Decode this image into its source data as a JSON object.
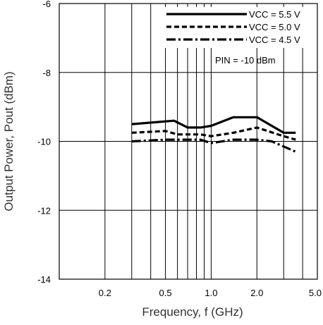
{
  "chart_data": {
    "type": "line",
    "xlabel": "Frequency, f (GHz)",
    "ylabel": "Output Power, Pout (dBm)",
    "x_scale": "log",
    "xlim": [
      0.1,
      5.0
    ],
    "ylim": [
      -14,
      -6
    ],
    "x_ticks": [
      {
        "value": 0.2,
        "label": "0.2"
      },
      {
        "value": 0.5,
        "label": "0.5"
      },
      {
        "value": 1.0,
        "label": "1.0"
      },
      {
        "value": 2.0,
        "label": "2.0"
      },
      {
        "value": 5.0,
        "label": "5.0"
      }
    ],
    "y_ticks": [
      {
        "value": -6,
        "label": "-6"
      },
      {
        "value": -8,
        "label": "-8"
      },
      {
        "value": -10,
        "label": "-10"
      },
      {
        "value": -12,
        "label": "-12"
      },
      {
        "value": -14,
        "label": "-14"
      }
    ],
    "x_gridlines": [
      0.2,
      0.3,
      0.4,
      0.5,
      0.6,
      0.7,
      0.8,
      0.9,
      1.0,
      2.0,
      3.0,
      4.0
    ],
    "y_gridlines": [
      -8,
      -10,
      -12
    ],
    "grid": true,
    "legend_position": "top-right",
    "annotation": "PIN = -10 dBm",
    "series": [
      {
        "name": "VCC = 5.5 V",
        "style": "solid",
        "color": "#000000",
        "x": [
          0.3,
          0.57,
          0.7,
          0.85,
          1.0,
          1.4,
          2.0,
          3.0,
          3.6
        ],
        "y": [
          -9.5,
          -9.4,
          -9.6,
          -9.6,
          -9.55,
          -9.3,
          -9.3,
          -9.75,
          -9.75
        ]
      },
      {
        "name": "VCC = 5.0 V",
        "style": "dashed",
        "color": "#000000",
        "x": [
          0.3,
          0.5,
          0.6,
          0.85,
          1.0,
          1.4,
          2.0,
          3.0,
          3.6
        ],
        "y": [
          -9.75,
          -9.7,
          -9.8,
          -9.8,
          -9.85,
          -9.75,
          -9.6,
          -9.85,
          -9.95
        ]
      },
      {
        "name": "VCC = 4.5 V",
        "style": "dash-dot",
        "color": "#000000",
        "x": [
          0.3,
          0.5,
          0.85,
          1.0,
          1.4,
          2.0,
          2.5,
          3.0,
          3.6
        ],
        "y": [
          -10.0,
          -9.95,
          -9.95,
          -10.05,
          -9.95,
          -9.95,
          -10.0,
          -10.15,
          -10.3
        ]
      }
    ]
  }
}
